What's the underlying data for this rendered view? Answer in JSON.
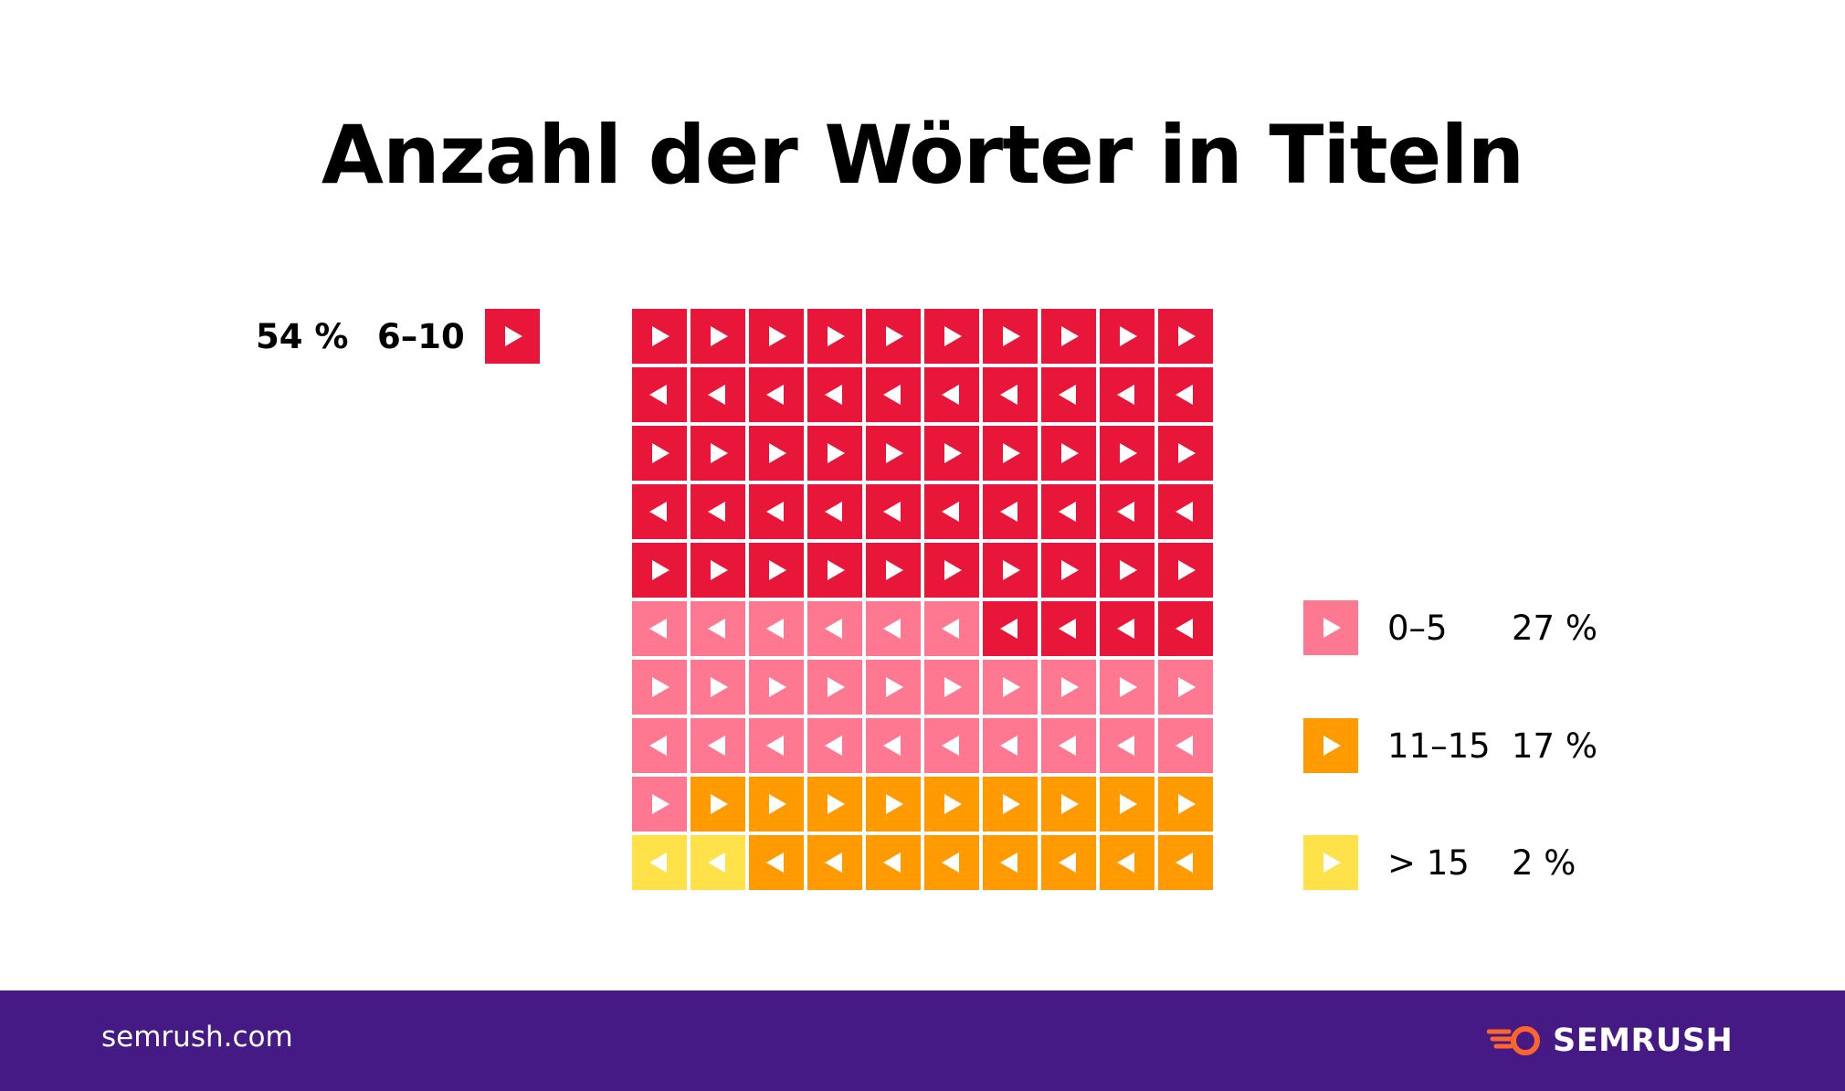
{
  "chart_data": {
    "type": "waffle",
    "title": "Anzahl der Wörter in Titeln",
    "grid": {
      "rows": 10,
      "cols": 10
    },
    "series": [
      {
        "name": "6–10",
        "value": 54,
        "label": "54 %",
        "color": "#e8173a"
      },
      {
        "name": "0–5",
        "value": 27,
        "label": "27 %",
        "color": "#ff7892"
      },
      {
        "name": "11–15",
        "value": 17,
        "label": "17 %",
        "color": "#ff9a00"
      },
      {
        "name": "> 15",
        "value": 2,
        "label": "2 %",
        "color": "#ffe14a"
      }
    ]
  },
  "footer": {
    "site": "semrush.com",
    "brand": "SEMRUSH",
    "bg_color": "#451a85",
    "logo_color": "#ff642d"
  }
}
